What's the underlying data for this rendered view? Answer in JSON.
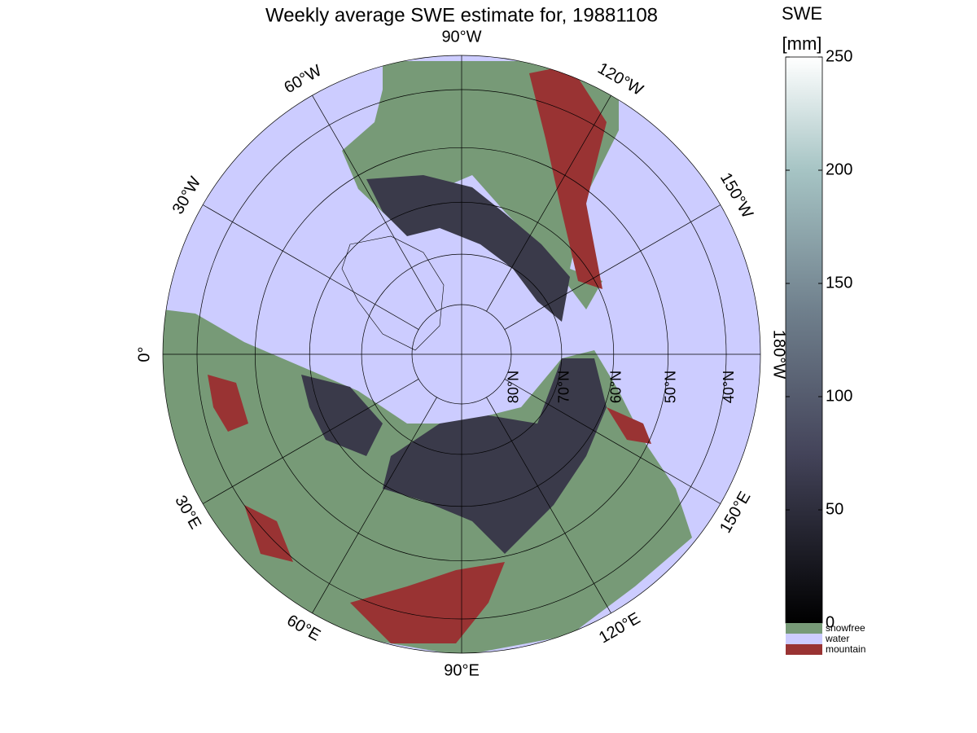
{
  "title": "Weekly average SWE estimate for, 19881108",
  "map": {
    "meridians": [
      {
        "value": -90,
        "label": "90°W"
      },
      {
        "value": -120,
        "label": "120°W"
      },
      {
        "value": -150,
        "label": "150°W"
      },
      {
        "value": 180,
        "label": "180°W"
      },
      {
        "value": 150,
        "label": "150°E"
      },
      {
        "value": 120,
        "label": "120°E"
      },
      {
        "value": 90,
        "label": "90°E"
      },
      {
        "value": 60,
        "label": "60°E"
      },
      {
        "value": 30,
        "label": "30°E"
      },
      {
        "value": 0,
        "label": "0°"
      },
      {
        "value": -30,
        "label": "30°W"
      },
      {
        "value": -60,
        "label": "60°W"
      }
    ],
    "parallels": [
      {
        "value": 80,
        "label": "80°N"
      },
      {
        "value": 70,
        "label": "70°N"
      },
      {
        "value": 60,
        "label": "60°N"
      },
      {
        "value": 50,
        "label": "50°N"
      },
      {
        "value": 40,
        "label": "40°N"
      }
    ]
  },
  "colorbar": {
    "title": "SWE",
    "unit": "[mm]",
    "lim": [
      0,
      250
    ],
    "ticks": [
      0,
      50,
      100,
      150,
      200,
      250
    ]
  },
  "legend": [
    {
      "name": "snowfree",
      "color": "#779a77"
    },
    {
      "name": "water",
      "color": "#ccccff"
    },
    {
      "name": "mountain",
      "color": "#993333"
    }
  ]
}
